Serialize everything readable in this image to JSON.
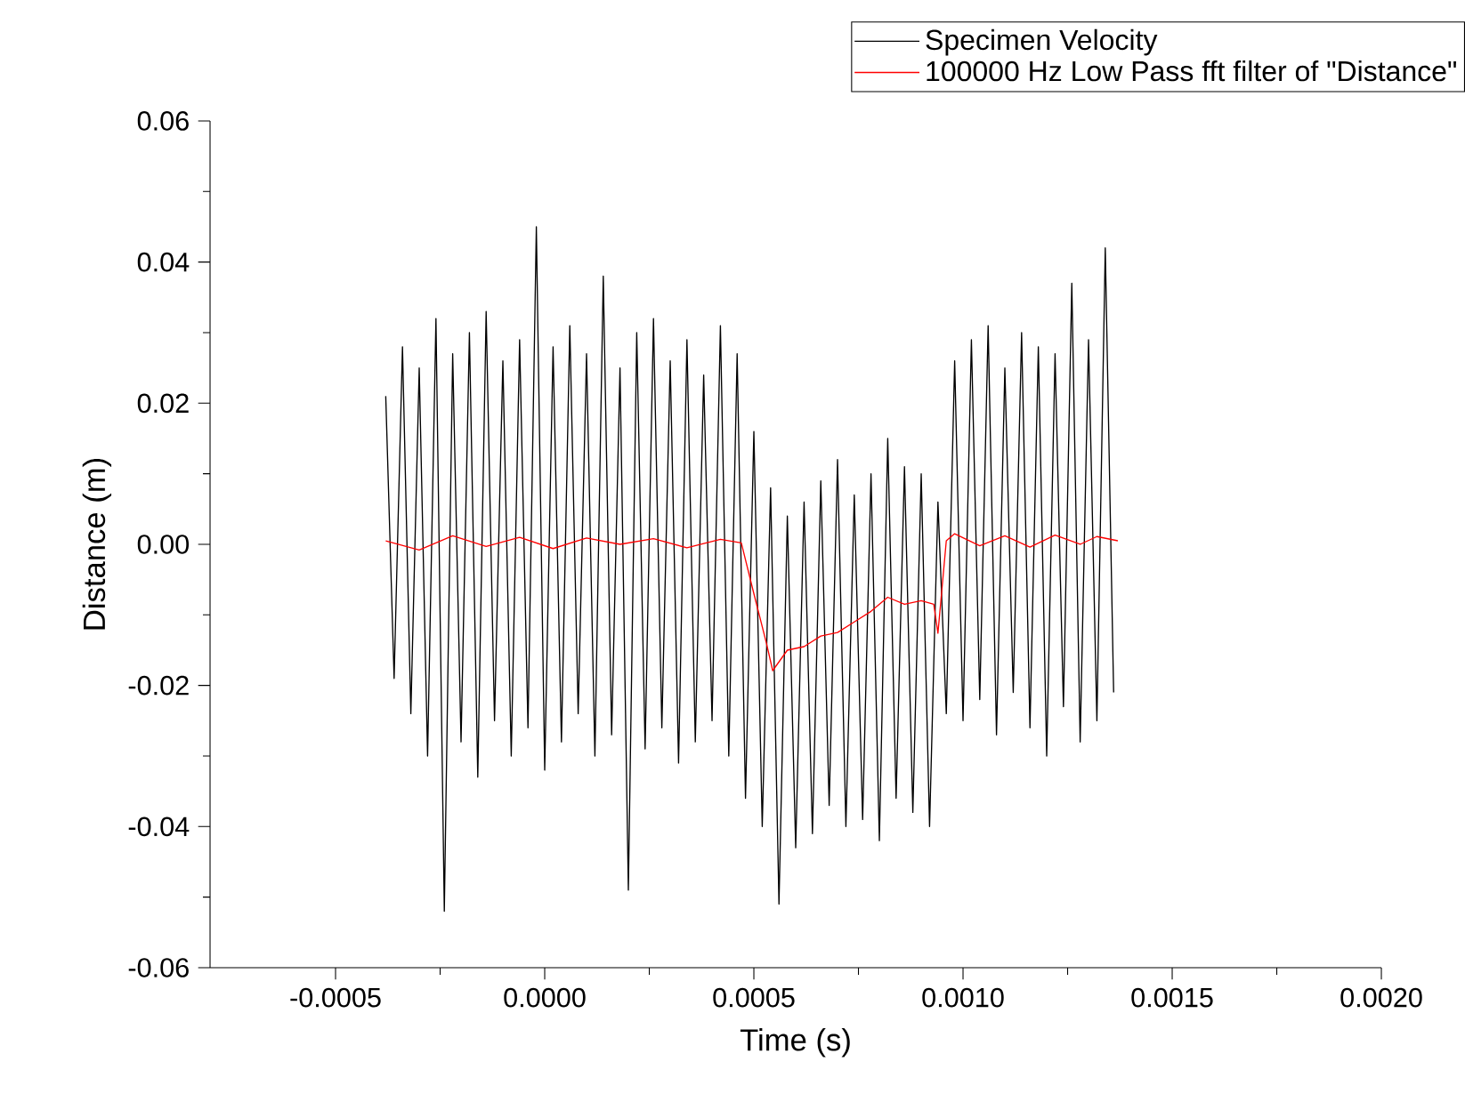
{
  "chart_data": {
    "type": "line",
    "xlabel": "Time (s)",
    "ylabel": "Distance (m)",
    "legend": "top right",
    "marker": "none",
    "line_style": "solid",
    "xlim": [
      -0.0008,
      0.002
    ],
    "ylim": [
      -0.06,
      0.06
    ],
    "xticks": [
      {
        "value": -0.0005,
        "label": "-0.0005"
      },
      {
        "value": 0,
        "label": "0.0000"
      },
      {
        "value": 0.0005,
        "label": "0.0005"
      },
      {
        "value": 0.001,
        "label": "0.0010"
      },
      {
        "value": 0.0015,
        "label": "0.0015"
      },
      {
        "value": 0.002,
        "label": "0.0020"
      }
    ],
    "yticks": [
      {
        "value": -0.06,
        "label": "-0.06"
      },
      {
        "value": -0.04,
        "label": "-0.04"
      },
      {
        "value": -0.02,
        "label": "-0.02"
      },
      {
        "value": 0,
        "label": "0.00"
      },
      {
        "value": 0.02,
        "label": "0.02"
      },
      {
        "value": 0.04,
        "label": "0.04"
      },
      {
        "value": 0.06,
        "label": "0.06"
      }
    ],
    "series": [
      {
        "name": "Specimen Velocity",
        "color": "#000000",
        "x": [
          -0.00038,
          -0.00036,
          -0.00034,
          -0.00032,
          -0.0003,
          -0.00028,
          -0.00026,
          -0.00024,
          -0.00022,
          -0.0002,
          -0.00018,
          -0.00016,
          -0.00014,
          -0.00012,
          -0.0001,
          -8e-05,
          -6e-05,
          -4e-05,
          -2e-05,
          0,
          2e-05,
          4e-05,
          6e-05,
          8e-05,
          0.0001,
          0.00012,
          0.00014,
          0.00016,
          0.00018,
          0.0002,
          0.00022,
          0.00024,
          0.00026,
          0.00028,
          0.0003,
          0.00032,
          0.00034,
          0.00036,
          0.00038,
          0.0004,
          0.00042,
          0.00044,
          0.00046,
          0.00048,
          0.0005,
          0.00052,
          0.00054,
          0.00056,
          0.00058,
          0.0006,
          0.00062,
          0.00064,
          0.00066,
          0.00068,
          0.0007,
          0.00072,
          0.00074,
          0.00076,
          0.00078,
          0.0008,
          0.00082,
          0.00084,
          0.00086,
          0.00088,
          0.0009,
          0.00092,
          0.00094,
          0.00096,
          0.00098,
          0.001,
          0.00102,
          0.00104,
          0.00106,
          0.00108,
          0.0011,
          0.00112,
          0.00114,
          0.00116,
          0.00118,
          0.0012,
          0.00122,
          0.00124,
          0.00126,
          0.00128,
          0.0013,
          0.00132,
          0.00134,
          0.00136
        ],
        "values": [
          0.021,
          -0.019,
          0.028,
          -0.024,
          0.025,
          -0.03,
          0.032,
          -0.052,
          0.027,
          -0.028,
          0.03,
          -0.033,
          0.033,
          -0.025,
          0.026,
          -0.03,
          0.029,
          -0.026,
          0.045,
          -0.032,
          0.028,
          -0.028,
          0.031,
          -0.024,
          0.027,
          -0.03,
          0.038,
          -0.027,
          0.025,
          -0.049,
          0.03,
          -0.029,
          0.032,
          -0.026,
          0.026,
          -0.031,
          0.029,
          -0.028,
          0.024,
          -0.025,
          0.031,
          -0.03,
          0.027,
          -0.036,
          0.016,
          -0.04,
          0.008,
          -0.051,
          0.004,
          -0.043,
          0.006,
          -0.041,
          0.009,
          -0.037,
          0.012,
          -0.04,
          0.007,
          -0.039,
          0.01,
          -0.042,
          0.015,
          -0.036,
          0.011,
          -0.038,
          0.01,
          -0.04,
          0.006,
          -0.024,
          0.026,
          -0.025,
          0.029,
          -0.022,
          0.031,
          -0.027,
          0.025,
          -0.021,
          0.03,
          -0.026,
          0.028,
          -0.03,
          0.027,
          -0.023,
          0.037,
          -0.028,
          0.029,
          -0.025,
          0.042,
          -0.021
        ]
      },
      {
        "name": "100000 Hz Low Pass fft filter of \"Distance\"",
        "color": "#ff0000",
        "x": [
          -0.00038,
          -0.0003,
          -0.00022,
          -0.00014,
          -6e-05,
          2e-05,
          0.0001,
          0.00018,
          0.00026,
          0.00034,
          0.00042,
          0.00047,
          0.0005,
          0.00053,
          0.000545,
          0.00058,
          0.00062,
          0.00066,
          0.0007,
          0.00074,
          0.00078,
          0.00082,
          0.00086,
          0.0009,
          0.00093,
          0.00094,
          0.00096,
          0.00098,
          0.00104,
          0.0011,
          0.00116,
          0.00122,
          0.00128,
          0.00132,
          0.00137
        ],
        "values": [
          0.0005,
          -0.0008,
          0.0012,
          -0.0003,
          0.001,
          -0.0006,
          0.0009,
          0,
          0.0008,
          -0.0005,
          0.0007,
          0.0002,
          -0.007,
          -0.014,
          -0.0179,
          -0.015,
          -0.0145,
          -0.013,
          -0.0125,
          -0.011,
          -0.0095,
          -0.0075,
          -0.0085,
          -0.008,
          -0.0085,
          -0.0126,
          0.0005,
          0.0015,
          -0.0002,
          0.0012,
          -0.0004,
          0.0013,
          0,
          0.0011,
          0.0005
        ]
      }
    ]
  }
}
